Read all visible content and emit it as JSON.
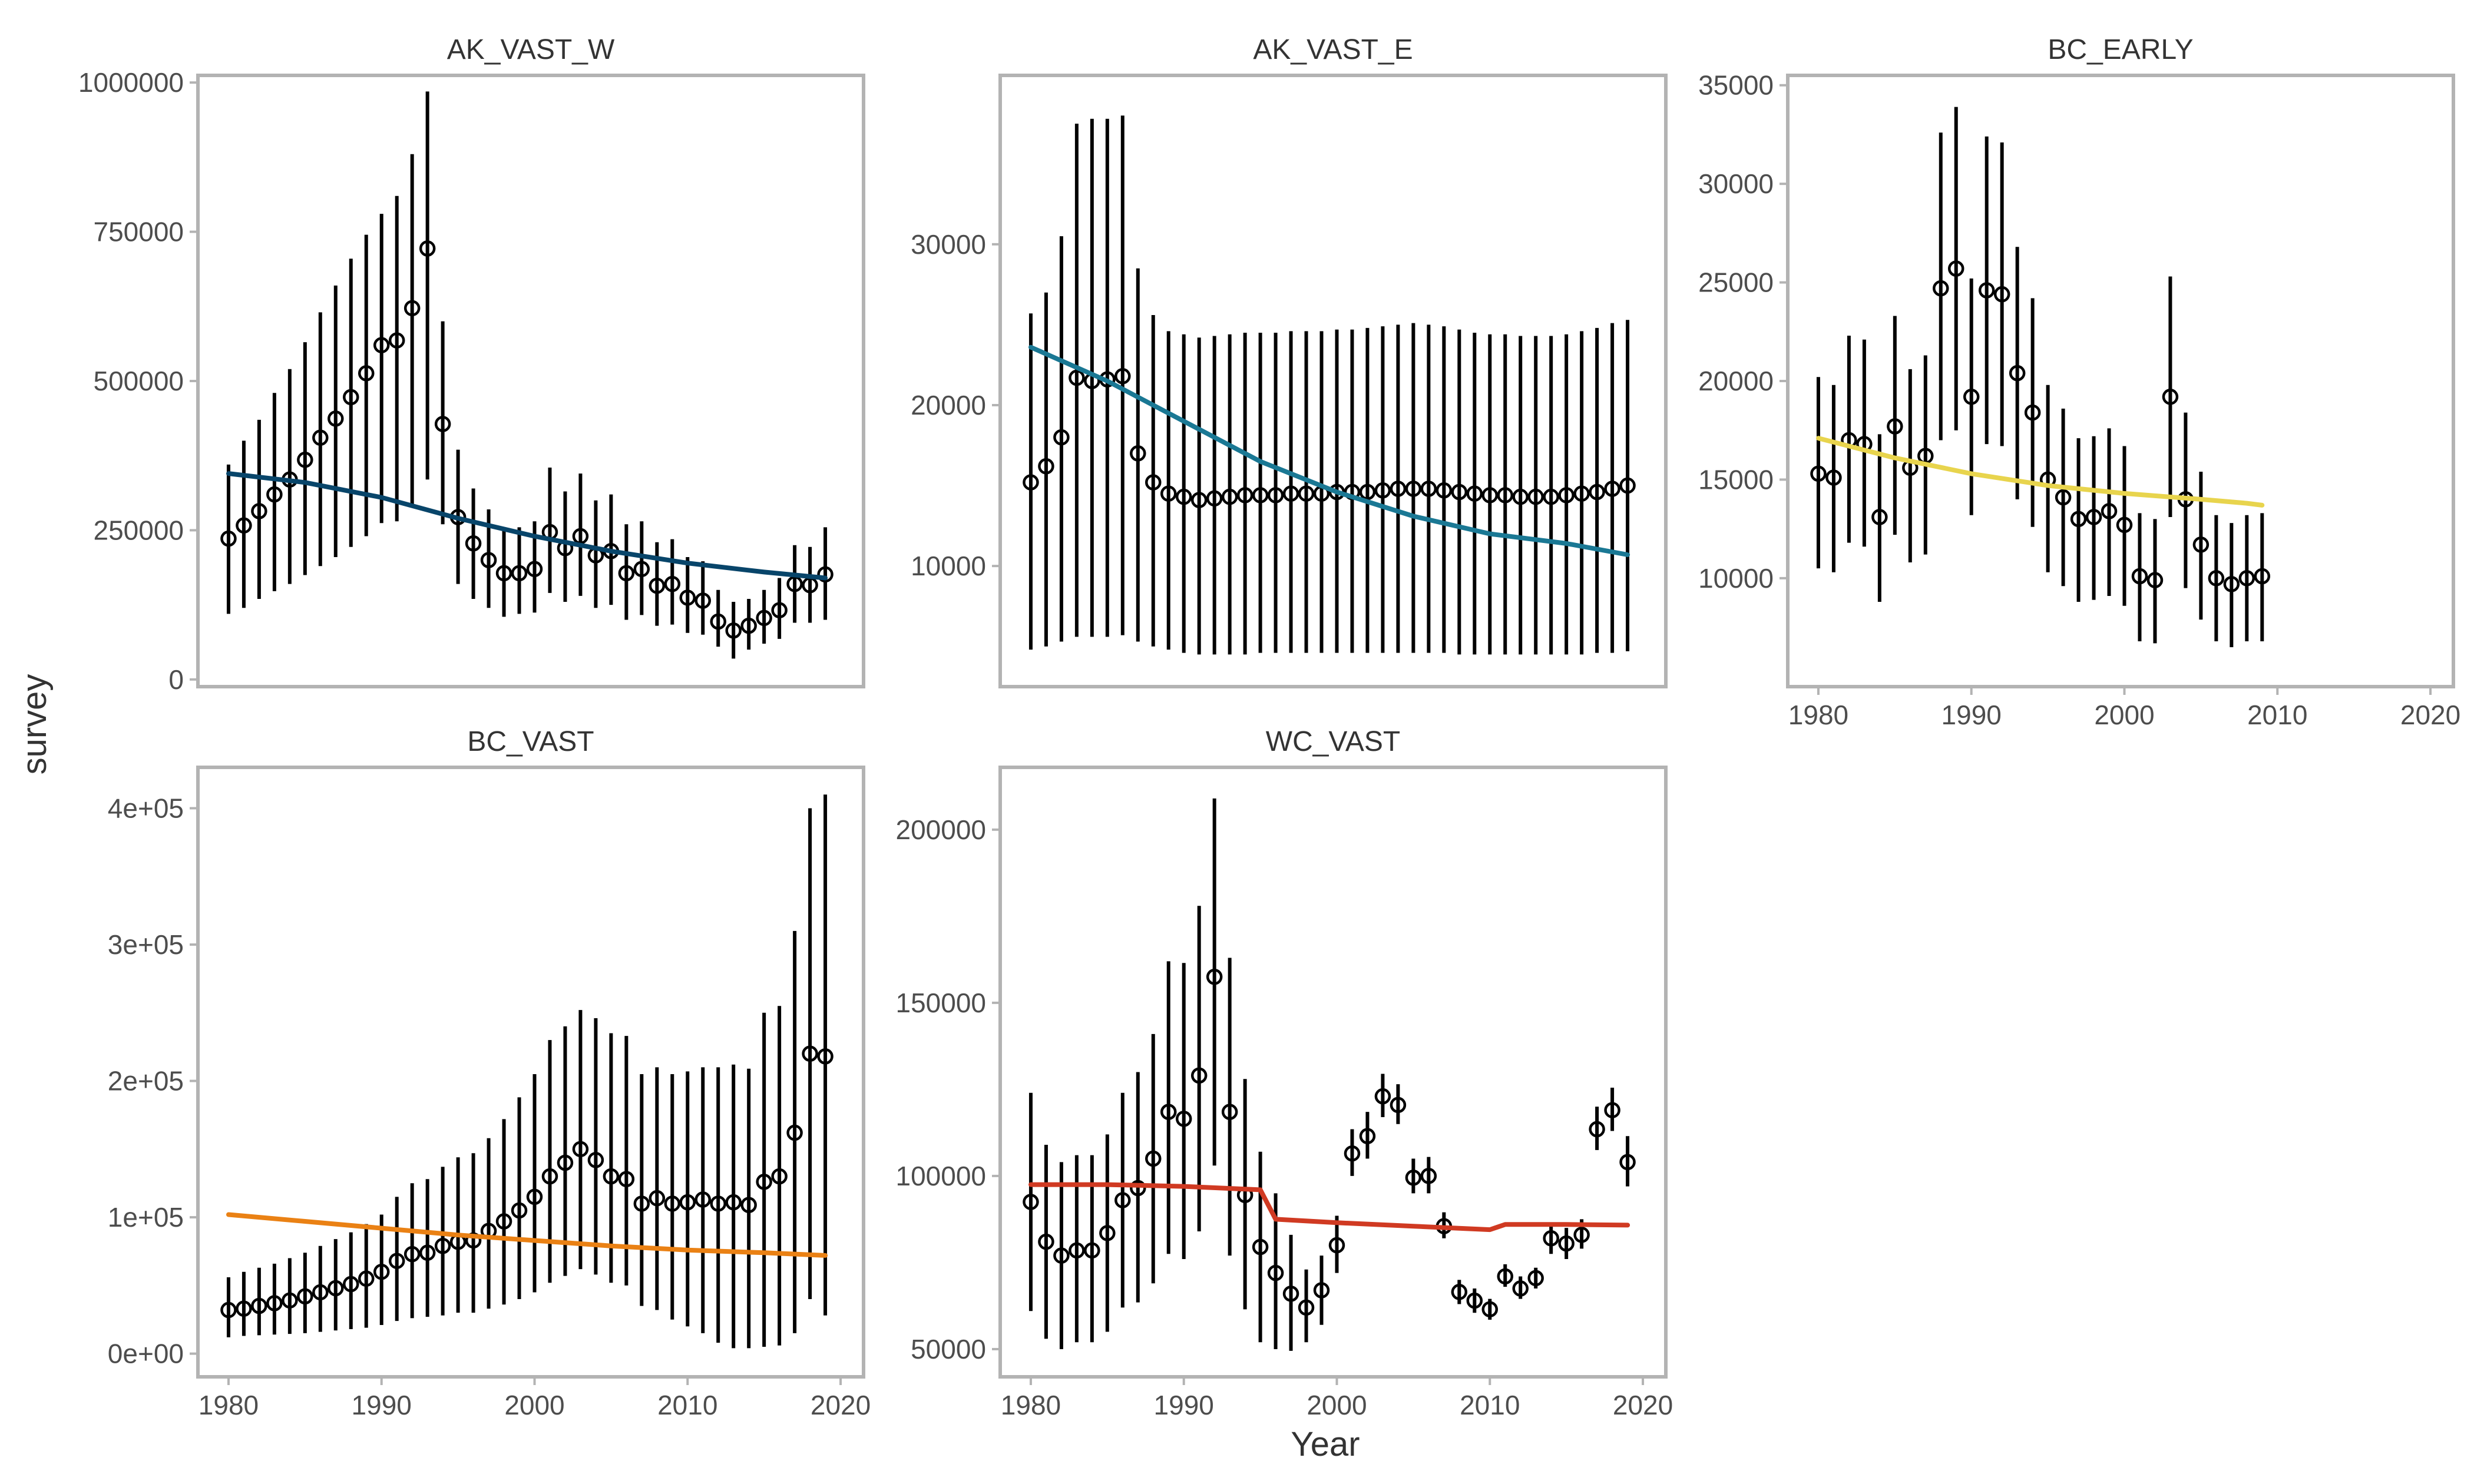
{
  "figure": {
    "xlabel": "Year",
    "ylabel": "survey"
  },
  "chart_data": [
    {
      "type": "scatter",
      "title": "AK_VAST_W",
      "color": "#08456a",
      "xlim": [
        1978,
        2021.5
      ],
      "ylim": [
        -12000,
        1012000
      ],
      "yticks": [
        0,
        250000,
        500000,
        750000,
        1000000
      ],
      "ytick_labels": [
        "0",
        "250000",
        "500000",
        "750000",
        "1000000"
      ],
      "xticks": [
        1980,
        1990,
        2000,
        2010,
        2020
      ],
      "xtick_labels": [
        "1980",
        "1990",
        "2000",
        "2010",
        "2020"
      ],
      "show_xticks": false,
      "x": [
        1980,
        1981,
        1982,
        1983,
        1984,
        1985,
        1986,
        1987,
        1988,
        1989,
        1990,
        1991,
        1992,
        1993,
        1994,
        1995,
        1996,
        1997,
        1998,
        1999,
        2000,
        2001,
        2002,
        2003,
        2004,
        2005,
        2006,
        2007,
        2008,
        2009,
        2010,
        2011,
        2012,
        2013,
        2014,
        2015,
        2016,
        2017,
        2018,
        2019
      ],
      "y": [
        236000,
        258000,
        282000,
        310000,
        335000,
        368000,
        405000,
        437000,
        473000,
        513000,
        560000,
        568000,
        622000,
        722000,
        428000,
        272000,
        228000,
        200000,
        178000,
        178000,
        185000,
        247000,
        220000,
        240000,
        208000,
        215000,
        178000,
        185000,
        157000,
        160000,
        137000,
        132000,
        97000,
        82000,
        90000,
        103000,
        116000,
        160000,
        158000,
        176000
      ],
      "lower": [
        110000,
        120000,
        135000,
        148000,
        160000,
        175000,
        190000,
        205000,
        222000,
        240000,
        262000,
        265000,
        290000,
        335000,
        260000,
        160000,
        135000,
        120000,
        105000,
        110000,
        112000,
        145000,
        130000,
        140000,
        120000,
        125000,
        100000,
        108000,
        90000,
        92000,
        78000,
        75000,
        55000,
        35000,
        50000,
        60000,
        68000,
        95000,
        95000,
        100000
      ],
      "upper": [
        360000,
        400000,
        435000,
        480000,
        520000,
        565000,
        615000,
        660000,
        705000,
        745000,
        780000,
        810000,
        880000,
        985000,
        600000,
        385000,
        320000,
        285000,
        255000,
        255000,
        265000,
        355000,
        315000,
        345000,
        300000,
        310000,
        260000,
        265000,
        230000,
        235000,
        205000,
        198000,
        150000,
        130000,
        135000,
        150000,
        170000,
        225000,
        222000,
        255000
      ],
      "fit_x": [
        1980,
        1985,
        1990,
        1995,
        2000,
        2005,
        2010,
        2015,
        2019
      ],
      "fit_y": [
        345000,
        330000,
        305000,
        270000,
        240000,
        215000,
        195000,
        180000,
        170000
      ]
    },
    {
      "type": "scatter",
      "title": "AK_VAST_E",
      "color": "#1a7894",
      "xlim": [
        1978,
        2021.5
      ],
      "ylim": [
        2500,
        40500
      ],
      "yticks": [
        10000,
        20000,
        30000
      ],
      "ytick_labels": [
        "10000",
        "20000",
        "30000"
      ],
      "xticks": [
        1980,
        1990,
        2000,
        2010,
        2020
      ],
      "xtick_labels": [
        "1980",
        "1990",
        "2000",
        "2010",
        "2020"
      ],
      "show_xticks": false,
      "x": [
        1980,
        1981,
        1982,
        1983,
        1984,
        1985,
        1986,
        1987,
        1988,
        1989,
        1990,
        1991,
        1992,
        1993,
        1994,
        1995,
        1996,
        1997,
        1998,
        1999,
        2000,
        2001,
        2002,
        2003,
        2004,
        2005,
        2006,
        2007,
        2008,
        2009,
        2010,
        2011,
        2012,
        2013,
        2014,
        2015,
        2016,
        2017,
        2018,
        2019
      ],
      "y": [
        15200,
        16200,
        18000,
        21700,
        21500,
        21600,
        21800,
        17000,
        15200,
        14500,
        14300,
        14100,
        14200,
        14300,
        14400,
        14400,
        14400,
        14500,
        14500,
        14500,
        14600,
        14600,
        14600,
        14700,
        14800,
        14800,
        14800,
        14700,
        14600,
        14500,
        14400,
        14400,
        14300,
        14300,
        14300,
        14400,
        14500,
        14600,
        14800,
        15000
      ],
      "lower": [
        4800,
        5000,
        5300,
        5600,
        5600,
        5600,
        5700,
        5300,
        5000,
        4800,
        4600,
        4500,
        4500,
        4500,
        4500,
        4600,
        4600,
        4600,
        4600,
        4600,
        4600,
        4600,
        4600,
        4600,
        4600,
        4600,
        4600,
        4600,
        4500,
        4500,
        4500,
        4500,
        4500,
        4500,
        4500,
        4500,
        4500,
        4600,
        4600,
        4700
      ],
      "upper": [
        25700,
        27000,
        30500,
        37500,
        37800,
        37800,
        38000,
        28500,
        25600,
        24600,
        24400,
        24200,
        24300,
        24400,
        24500,
        24500,
        24500,
        24600,
        24600,
        24600,
        24700,
        24700,
        24800,
        24900,
        25000,
        25100,
        25000,
        24900,
        24700,
        24500,
        24400,
        24400,
        24300,
        24300,
        24300,
        24400,
        24600,
        24800,
        25100,
        25300
      ],
      "fit_x": [
        1980,
        1985,
        1990,
        1995,
        2000,
        2005,
        2010,
        2015,
        2019
      ],
      "fit_y": [
        23600,
        21500,
        19000,
        16500,
        14600,
        13100,
        12000,
        11400,
        10700
      ]
    },
    {
      "type": "scatter",
      "title": "BC_EARLY",
      "color": "#e8d44d",
      "xlim": [
        1978,
        2021.5
      ],
      "ylim": [
        4500,
        35500
      ],
      "yticks": [
        10000,
        15000,
        20000,
        25000,
        30000,
        35000
      ],
      "ytick_labels": [
        "10000",
        "15000",
        "20000",
        "25000",
        "30000",
        "35000"
      ],
      "xticks": [
        1980,
        1990,
        2000,
        2010,
        2020
      ],
      "xtick_labels": [
        "1980",
        "1990",
        "2000",
        "2010",
        "2020"
      ],
      "show_xticks": true,
      "x": [
        1980,
        1981,
        1982,
        1983,
        1984,
        1985,
        1986,
        1987,
        1988,
        1989,
        1990,
        1991,
        1992,
        1993,
        1994,
        1995,
        1996,
        1997,
        1998,
        1999,
        2000,
        2001,
        2002,
        2003,
        2004,
        2005,
        2006,
        2007,
        2008,
        2009
      ],
      "y": [
        15300,
        15100,
        17000,
        16800,
        13100,
        17700,
        15600,
        16200,
        24700,
        25700,
        19200,
        24600,
        24400,
        20400,
        18400,
        15000,
        14100,
        13000,
        13100,
        13400,
        12700,
        10100,
        9900,
        19200,
        14000,
        11700,
        10000,
        9700,
        10000,
        10100
      ],
      "lower": [
        10500,
        10300,
        11800,
        11600,
        8800,
        12200,
        10800,
        11200,
        17000,
        17500,
        13200,
        16800,
        16700,
        14000,
        12600,
        10300,
        9600,
        8800,
        8900,
        9100,
        8600,
        6800,
        6700,
        13100,
        9500,
        7900,
        6800,
        6500,
        6800,
        6800
      ],
      "upper": [
        20200,
        19800,
        22300,
        22100,
        17300,
        23300,
        20600,
        21300,
        32600,
        33900,
        25200,
        32400,
        32100,
        26800,
        24200,
        19800,
        18600,
        17100,
        17200,
        17600,
        16700,
        13300,
        13000,
        25300,
        18400,
        15400,
        13200,
        12800,
        13200,
        13300
      ],
      "fit_x": [
        1980,
        1985,
        1990,
        1995,
        2000,
        2005,
        2008,
        2009
      ],
      "fit_y": [
        17100,
        16100,
        15300,
        14700,
        14300,
        14000,
        13800,
        13700
      ]
    },
    {
      "type": "scatter",
      "title": "BC_VAST",
      "color": "#ea8114",
      "xlim": [
        1978,
        2021.5
      ],
      "ylim": [
        -17000,
        430000
      ],
      "yticks": [
        0,
        100000,
        200000,
        300000,
        400000
      ],
      "ytick_labels": [
        "0e+00",
        "1e+05",
        "2e+05",
        "3e+05",
        "4e+05"
      ],
      "xticks": [
        1980,
        1990,
        2000,
        2010,
        2020
      ],
      "xtick_labels": [
        "1980",
        "1990",
        "2000",
        "2010",
        "2020"
      ],
      "show_xticks": true,
      "x": [
        1980,
        1981,
        1982,
        1983,
        1984,
        1985,
        1986,
        1987,
        1988,
        1989,
        1990,
        1991,
        1992,
        1993,
        1994,
        1995,
        1996,
        1997,
        1998,
        1999,
        2000,
        2001,
        2002,
        2003,
        2004,
        2005,
        2006,
        2007,
        2008,
        2009,
        2010,
        2011,
        2012,
        2013,
        2014,
        2015,
        2016,
        2017,
        2018,
        2019
      ],
      "y": [
        32000,
        33000,
        35000,
        37000,
        39000,
        42000,
        45000,
        48000,
        51000,
        55000,
        60000,
        68000,
        73000,
        74000,
        79000,
        82000,
        83000,
        90000,
        97000,
        105000,
        115000,
        130000,
        140000,
        150000,
        142000,
        130000,
        128000,
        110000,
        114000,
        110000,
        111000,
        113000,
        110000,
        111000,
        109000,
        126000,
        130000,
        162000,
        220000,
        218000
      ],
      "lower": [
        12000,
        13000,
        13500,
        14000,
        14500,
        15000,
        16000,
        17000,
        18000,
        19000,
        21000,
        24000,
        26000,
        27000,
        28000,
        30000,
        30000,
        33000,
        36000,
        40000,
        45000,
        52000,
        57000,
        62000,
        58000,
        52000,
        50000,
        35000,
        32000,
        25000,
        20000,
        15000,
        8000,
        4000,
        4000,
        5000,
        6000,
        15000,
        40000,
        28000
      ],
      "upper": [
        56000,
        60000,
        63000,
        66000,
        70000,
        74000,
        79000,
        84000,
        89000,
        95000,
        102000,
        115000,
        125000,
        128000,
        137000,
        144000,
        147000,
        158000,
        172000,
        188000,
        205000,
        230000,
        240000,
        252000,
        246000,
        235000,
        233000,
        205000,
        210000,
        205000,
        207000,
        210000,
        210000,
        212000,
        209000,
        250000,
        255000,
        310000,
        400000,
        410000
      ],
      "fit_x": [
        1980,
        1985,
        1990,
        1995,
        2000,
        2005,
        2010,
        2015,
        2019
      ],
      "fit_y": [
        102000,
        97000,
        92000,
        87000,
        83000,
        79000,
        76000,
        74000,
        72000
      ]
    },
    {
      "type": "scatter",
      "title": "WC_VAST",
      "color": "#d03a22",
      "xlim": [
        1978,
        2021.5
      ],
      "ylim": [
        42000,
        218000
      ],
      "yticks": [
        50000,
        100000,
        150000,
        200000
      ],
      "ytick_labels": [
        "50000",
        "100000",
        "150000",
        "200000"
      ],
      "xticks": [
        1980,
        1990,
        2000,
        2010,
        2020
      ],
      "xtick_labels": [
        "1980",
        "1990",
        "2000",
        "2010",
        "2020"
      ],
      "show_xticks": true,
      "x": [
        1980,
        1981,
        1982,
        1983,
        1984,
        1985,
        1986,
        1987,
        1988,
        1989,
        1990,
        1991,
        1992,
        1993,
        1994,
        1995,
        1996,
        1997,
        1998,
        1999,
        2000,
        2001,
        2002,
        2003,
        2004,
        2005,
        2006,
        2007,
        2008,
        2009,
        2010,
        2011,
        2012,
        2013,
        2014,
        2015,
        2016,
        2017,
        2018,
        2019
      ],
      "y": [
        92500,
        81000,
        77000,
        78500,
        78500,
        83500,
        93000,
        96500,
        105000,
        118500,
        116500,
        129000,
        157500,
        118500,
        94500,
        79500,
        72000,
        66000,
        62000,
        67000,
        80000,
        106500,
        111500,
        123000,
        120500,
        99500,
        100000,
        85500,
        66500,
        64000,
        61500,
        71000,
        67500,
        70500,
        82000,
        80500,
        83000,
        113500,
        119000,
        104000
      ],
      "lower": [
        61000,
        53000,
        50000,
        52000,
        52000,
        55000,
        62000,
        63500,
        69000,
        77500,
        76000,
        84000,
        103000,
        77000,
        61500,
        52000,
        50000,
        49500,
        52000,
        57000,
        72000,
        100000,
        105000,
        117000,
        115000,
        95000,
        95000,
        82000,
        63000,
        60500,
        58500,
        68000,
        64500,
        67500,
        77500,
        76000,
        79000,
        107500,
        113000,
        97000
      ],
      "upper": [
        124000,
        109000,
        104000,
        106000,
        106000,
        112000,
        124000,
        130000,
        141000,
        162000,
        161500,
        178000,
        209000,
        163000,
        128000,
        107000,
        95000,
        83000,
        73000,
        77000,
        88500,
        113500,
        118500,
        129500,
        126500,
        105000,
        105500,
        89500,
        70000,
        67500,
        64500,
        74500,
        71000,
        73500,
        86500,
        85000,
        87500,
        120000,
        125500,
        111500
      ],
      "fit_x": [
        1980,
        1985,
        1990,
        1995,
        1996,
        2000,
        2005,
        2010,
        2011,
        2015,
        2019
      ],
      "fit_y": [
        97500,
        97500,
        97000,
        96000,
        87500,
        86500,
        85500,
        84500,
        86000,
        86000,
        85800
      ]
    }
  ]
}
